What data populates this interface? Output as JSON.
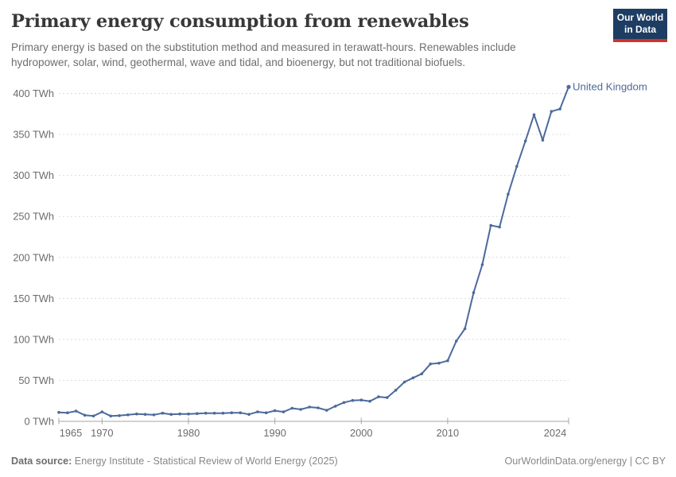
{
  "header": {
    "title": "Primary energy consumption from renewables",
    "subtitle": "Primary energy is based on the substitution method and measured in terawatt-hours. Renewables include hydropower, solar, wind, geothermal, wave and tidal, and bioenergy, but not traditional biofuels.",
    "logo": {
      "line1": "Our World",
      "line2": "in Data",
      "bg": "#1d3d63",
      "stripe": "#cf342b"
    }
  },
  "chart_data": {
    "type": "line",
    "title": "Primary energy consumption from renewables",
    "entity": "United Kingdom",
    "unit": "TWh",
    "xlim": [
      1965,
      2024
    ],
    "ylim": [
      0,
      400
    ],
    "grid": "dashed-horizontal",
    "legend_position": "end-of-line-label",
    "x": [
      1965,
      1966,
      1967,
      1968,
      1969,
      1970,
      1971,
      1972,
      1973,
      1974,
      1975,
      1976,
      1977,
      1978,
      1979,
      1980,
      1981,
      1982,
      1983,
      1984,
      1985,
      1986,
      1987,
      1988,
      1989,
      1990,
      1991,
      1992,
      1993,
      1994,
      1995,
      1996,
      1997,
      1998,
      1999,
      2000,
      2001,
      2002,
      2003,
      2004,
      2005,
      2006,
      2007,
      2008,
      2009,
      2010,
      2011,
      2012,
      2013,
      2014,
      2015,
      2016,
      2017,
      2018,
      2019,
      2020,
      2021,
      2022,
      2023,
      2024
    ],
    "values": [
      11,
      10.5,
      12.5,
      7.5,
      6.5,
      11.5,
      6.5,
      7,
      8,
      9,
      8.5,
      8,
      10,
      8.5,
      9,
      9,
      9.5,
      10,
      10,
      10,
      10.5,
      10.5,
      8.5,
      11.5,
      10.5,
      13,
      11.5,
      16,
      14.5,
      17.5,
      16.5,
      13.5,
      18.5,
      23,
      25.5,
      26,
      24.5,
      30,
      29,
      38,
      48,
      53,
      58,
      70,
      71,
      74,
      98,
      113,
      157,
      191,
      239,
      237,
      277,
      311,
      342,
      374,
      343,
      378,
      381,
      408
    ],
    "y_ticks": [
      {
        "value": 0,
        "label": "0 TWh"
      },
      {
        "value": 50,
        "label": "50 TWh"
      },
      {
        "value": 100,
        "label": "100 TWh"
      },
      {
        "value": 150,
        "label": "150 TWh"
      },
      {
        "value": 200,
        "label": "200 TWh"
      },
      {
        "value": 250,
        "label": "250 TWh"
      },
      {
        "value": 300,
        "label": "300 TWh"
      },
      {
        "value": 350,
        "label": "350 TWh"
      },
      {
        "value": 400,
        "label": "400 TWh"
      }
    ],
    "x_ticks": [
      {
        "year": 1965,
        "label": "1965",
        "shift": 15
      },
      {
        "year": 1970,
        "label": "1970"
      },
      {
        "year": 1980,
        "label": "1980"
      },
      {
        "year": 1990,
        "label": "1990"
      },
      {
        "year": 2000,
        "label": "2000"
      },
      {
        "year": 2010,
        "label": "2010"
      },
      {
        "year": 2024,
        "label": "2024",
        "shift": -17
      }
    ],
    "colors": {
      "line": "#4c6a9c",
      "entity_label": "#4c6a9c",
      "grid": "#dcdcdc",
      "axis": "#a6a6a6",
      "tick_text": "#6b6b6b"
    }
  },
  "footer": {
    "source_label": "Data source:",
    "source_text": "Energy Institute - Statistical Review of World Energy (2025)",
    "credit": "OurWorldinData.org/energy | CC BY"
  }
}
